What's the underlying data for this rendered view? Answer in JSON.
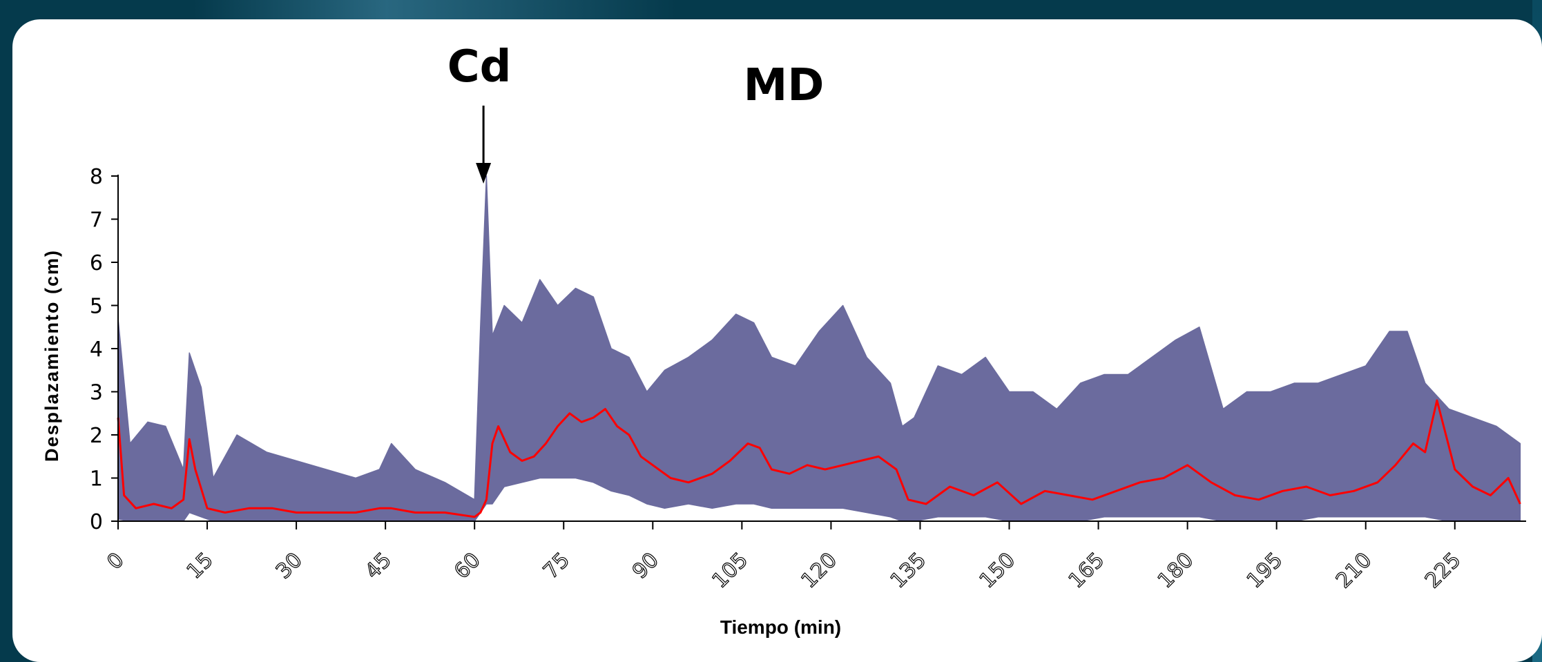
{
  "slide": {
    "background_color": "#053a4c",
    "panel_color": "#ffffff"
  },
  "chart_data": {
    "type": "line",
    "title": "MD",
    "xlabel": "Tiempo (min)",
    "ylabel": "Desplazamiento (cm)",
    "xlim": [
      0,
      237
    ],
    "ylim": [
      0,
      8
    ],
    "x_ticks": [
      0,
      15,
      30,
      45,
      60,
      75,
      90,
      105,
      120,
      135,
      150,
      165,
      180,
      195,
      210,
      225
    ],
    "y_ticks": [
      0,
      1,
      2,
      3,
      4,
      5,
      6,
      7,
      8
    ],
    "grid": false,
    "annotation": {
      "text": "Cd",
      "x": 61.5,
      "arrow": "down"
    },
    "series": [
      {
        "role": "range",
        "color": "#6b6b9e",
        "x": [
          0,
          2,
          5,
          8,
          11,
          12,
          14,
          16,
          20,
          25,
          30,
          35,
          40,
          44,
          46,
          50,
          55,
          60,
          61,
          62,
          63,
          65,
          68,
          71,
          74,
          77,
          80,
          83,
          86,
          89,
          92,
          96,
          100,
          104,
          107,
          110,
          114,
          118,
          122,
          126,
          130,
          132,
          134,
          138,
          142,
          146,
          150,
          154,
          158,
          162,
          166,
          170,
          174,
          178,
          182,
          186,
          190,
          194,
          198,
          202,
          206,
          210,
          214,
          217,
          220,
          224,
          228,
          232,
          236
        ],
        "upper": [
          4.7,
          1.8,
          2.3,
          2.2,
          1.2,
          3.9,
          3.1,
          1.0,
          2.0,
          1.6,
          1.4,
          1.2,
          1.0,
          1.2,
          1.8,
          1.2,
          0.9,
          0.5,
          4.5,
          8.0,
          4.3,
          5.0,
          4.6,
          5.6,
          5.0,
          5.4,
          5.2,
          4.0,
          3.8,
          3.0,
          3.5,
          3.8,
          4.2,
          4.8,
          4.6,
          3.8,
          3.6,
          4.4,
          5.0,
          3.8,
          3.2,
          2.2,
          2.4,
          3.6,
          3.4,
          3.8,
          3.0,
          3.0,
          2.6,
          3.2,
          3.4,
          3.4,
          3.8,
          4.2,
          4.5,
          2.6,
          3.0,
          3.0,
          3.2,
          3.2,
          3.4,
          3.6,
          4.4,
          4.4,
          3.2,
          2.6,
          2.4,
          2.2,
          1.8
        ],
        "lower": [
          0.05,
          0.0,
          0.0,
          0.0,
          0.0,
          0.2,
          0.1,
          0.0,
          0.0,
          0.0,
          0.0,
          0.0,
          0.0,
          0.0,
          0.0,
          0.0,
          0.0,
          0.0,
          0.2,
          0.4,
          0.4,
          0.8,
          0.9,
          1.0,
          1.0,
          1.0,
          0.9,
          0.7,
          0.6,
          0.4,
          0.3,
          0.4,
          0.3,
          0.4,
          0.4,
          0.3,
          0.3,
          0.3,
          0.3,
          0.2,
          0.1,
          0.0,
          0.0,
          0.1,
          0.1,
          0.1,
          0.0,
          0.0,
          0.0,
          0.0,
          0.1,
          0.1,
          0.1,
          0.1,
          0.1,
          0.0,
          0.0,
          0.0,
          0.0,
          0.1,
          0.1,
          0.1,
          0.1,
          0.1,
          0.1,
          0.0,
          0.0,
          0.0,
          0.0
        ]
      },
      {
        "role": "mean",
        "color": "#ff0000",
        "x": [
          0,
          1,
          3,
          6,
          9,
          11,
          12,
          13,
          15,
          18,
          22,
          26,
          30,
          35,
          40,
          44,
          46,
          50,
          55,
          60,
          61,
          62,
          63,
          64,
          66,
          68,
          70,
          72,
          74,
          76,
          78,
          80,
          82,
          84,
          86,
          88,
          90,
          93,
          96,
          100,
          103,
          106,
          108,
          110,
          113,
          116,
          119,
          122,
          125,
          128,
          131,
          133,
          136,
          140,
          144,
          148,
          152,
          156,
          160,
          164,
          168,
          172,
          176,
          180,
          184,
          188,
          192,
          196,
          200,
          204,
          208,
          212,
          215,
          218,
          220,
          222,
          225,
          228,
          231,
          234,
          236
        ],
        "y": [
          2.4,
          0.6,
          0.3,
          0.4,
          0.3,
          0.5,
          1.9,
          1.2,
          0.3,
          0.2,
          0.3,
          0.3,
          0.2,
          0.2,
          0.2,
          0.3,
          0.3,
          0.2,
          0.2,
          0.1,
          0.2,
          0.5,
          1.8,
          2.2,
          1.6,
          1.4,
          1.5,
          1.8,
          2.2,
          2.5,
          2.3,
          2.4,
          2.6,
          2.2,
          2.0,
          1.5,
          1.3,
          1.0,
          0.9,
          1.1,
          1.4,
          1.8,
          1.7,
          1.2,
          1.1,
          1.3,
          1.2,
          1.3,
          1.4,
          1.5,
          1.2,
          0.5,
          0.4,
          0.8,
          0.6,
          0.9,
          0.4,
          0.7,
          0.6,
          0.5,
          0.7,
          0.9,
          1.0,
          1.3,
          0.9,
          0.6,
          0.5,
          0.7,
          0.8,
          0.6,
          0.7,
          0.9,
          1.3,
          1.8,
          1.6,
          2.8,
          1.2,
          0.8,
          0.6,
          1.0,
          0.4
        ]
      }
    ]
  }
}
